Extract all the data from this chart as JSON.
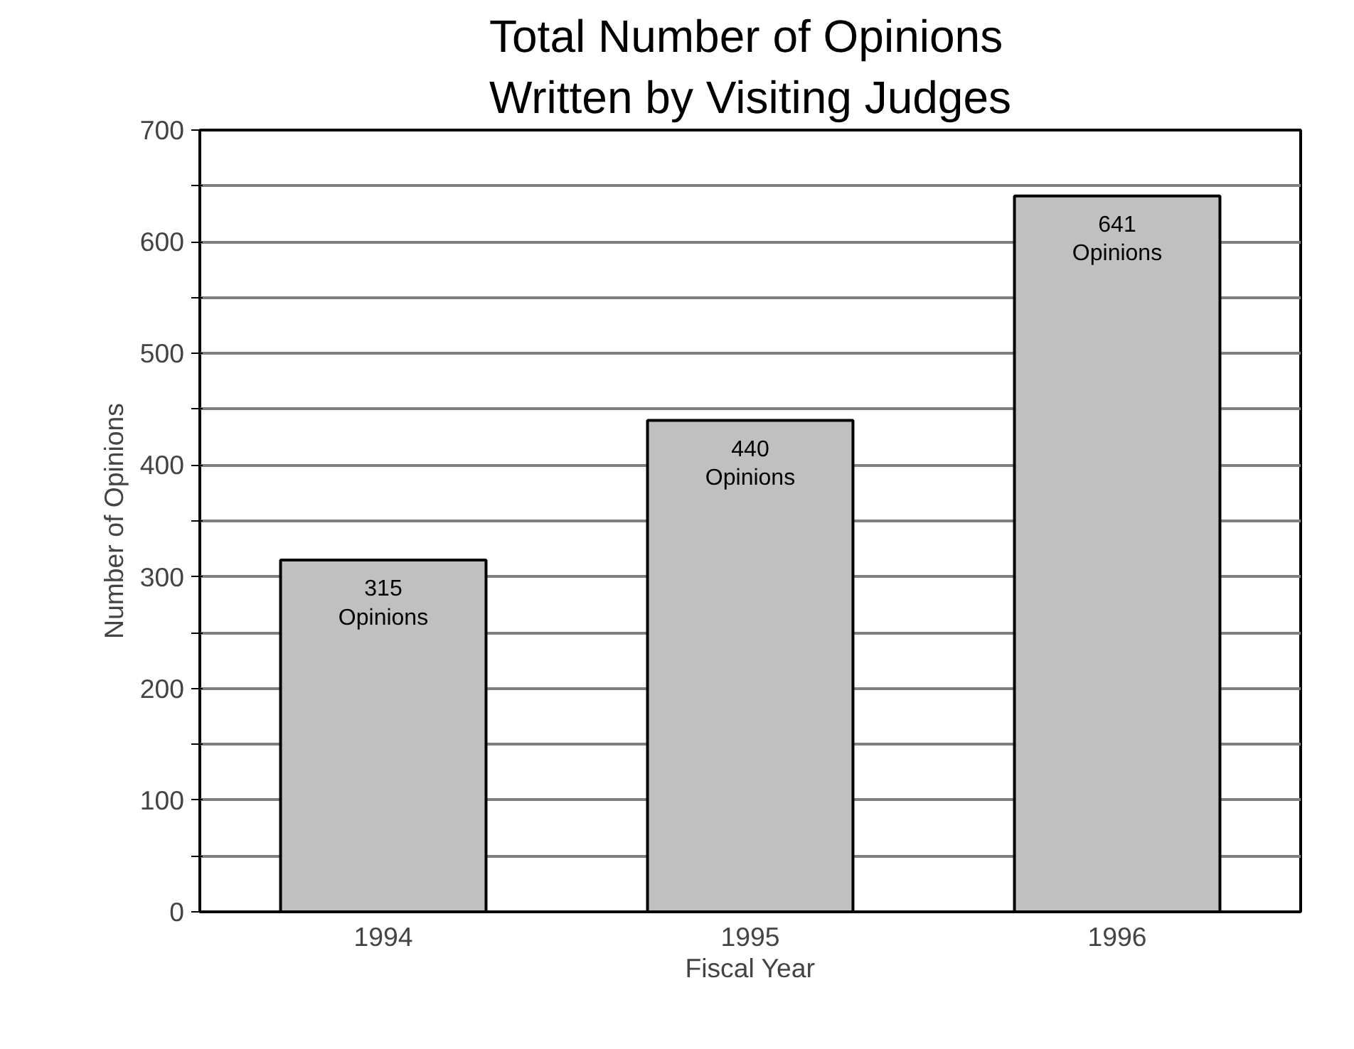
{
  "chart_data": {
    "type": "bar",
    "title": "Total Number of Opinions\nWritten by Visiting Judges",
    "xlabel": "Fiscal Year",
    "ylabel": "Number of Opinions",
    "categories": [
      "1994",
      "1995",
      "1996"
    ],
    "values": [
      315,
      440,
      641
    ],
    "color": "#c0c0c0",
    "value_labels": [
      "315\nOpinions",
      "440\nOpinions",
      "641\nOpinions"
    ],
    "ylim": [
      0,
      700
    ],
    "yticks": [
      0,
      {
        "value": 50,
        "label": null
      },
      100,
      {
        "value": 150,
        "label": null
      },
      200,
      {
        "value": 250,
        "label": null
      },
      300,
      {
        "value": 350,
        "label": null
      },
      400,
      {
        "value": 450,
        "label": null
      },
      500,
      {
        "value": 550,
        "label": null
      },
      600,
      {
        "value": 650,
        "label": null
      },
      700
    ],
    "grid": "y"
  }
}
